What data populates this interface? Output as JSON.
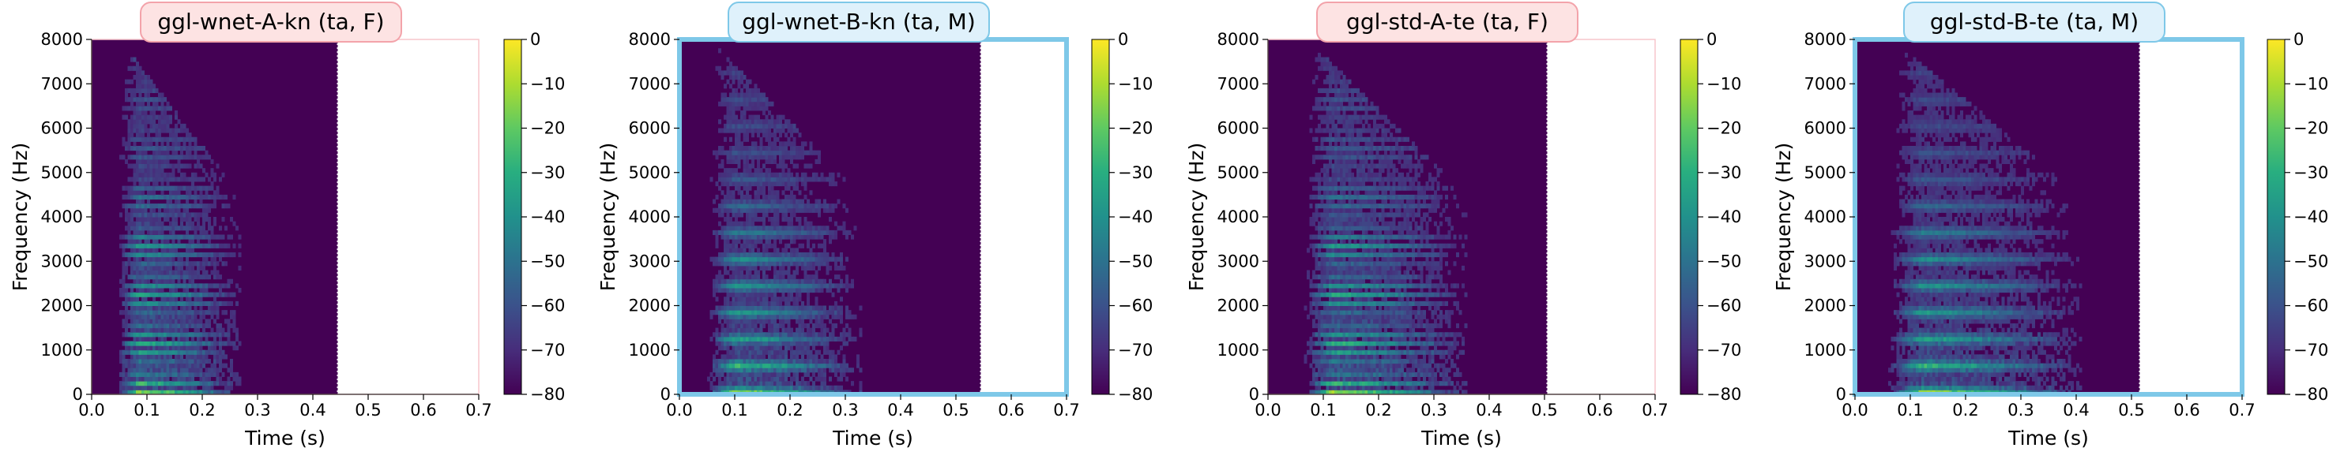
{
  "chart_data": [
    {
      "type": "heatmap",
      "title": "ggl-wnet-A-kn (ta, F)",
      "title_style": "female",
      "xlabel": "Time (s)",
      "ylabel": "Frequency (Hz)",
      "xlim": [
        0,
        0.7
      ],
      "ylim": [
        0,
        8000
      ],
      "x_ticks": [
        "0.0",
        "0.1",
        "0.2",
        "0.3",
        "0.4",
        "0.5",
        "0.6",
        "0.7"
      ],
      "y_ticks": [
        "0",
        "1000",
        "2000",
        "3000",
        "4000",
        "5000",
        "6000",
        "7000",
        "8000"
      ],
      "signal_start_s": 0.045,
      "signal_end_s": 0.27,
      "spectrogram_end_s": 0.445,
      "colorbar": {
        "label": "",
        "range": [
          -80,
          0
        ],
        "ticks": [
          "0",
          "−10",
          "−20",
          "−30",
          "−40",
          "−50",
          "−60",
          "−70",
          "−80"
        ],
        "colormap": "viridis"
      },
      "frame_color": "#f7c6cc"
    },
    {
      "type": "heatmap",
      "title": "ggl-wnet-B-kn (ta, M)",
      "title_style": "male",
      "xlabel": "Time (s)",
      "ylabel": "Frequency (Hz)",
      "xlim": [
        0,
        0.7
      ],
      "ylim": [
        0,
        8000
      ],
      "x_ticks": [
        "0.0",
        "0.1",
        "0.2",
        "0.3",
        "0.4",
        "0.5",
        "0.6",
        "0.7"
      ],
      "y_ticks": [
        "0",
        "1000",
        "2000",
        "3000",
        "4000",
        "5000",
        "6000",
        "7000",
        "8000"
      ],
      "signal_start_s": 0.05,
      "signal_end_s": 0.33,
      "spectrogram_end_s": 0.545,
      "colorbar": {
        "label": "",
        "range": [
          -80,
          0
        ],
        "ticks": [
          "0",
          "−10",
          "−20",
          "−30",
          "−40",
          "−50",
          "−60",
          "−70",
          "−80"
        ],
        "colormap": "viridis"
      },
      "frame_color": "#7ec8e8"
    },
    {
      "type": "heatmap",
      "title": "ggl-std-A-te (ta, F)",
      "title_style": "female",
      "xlabel": "Time (s)",
      "ylabel": "Frequency (Hz)",
      "xlim": [
        0,
        0.7
      ],
      "ylim": [
        0,
        8000
      ],
      "x_ticks": [
        "0.0",
        "0.1",
        "0.2",
        "0.3",
        "0.4",
        "0.5",
        "0.6",
        "0.7"
      ],
      "y_ticks": [
        "0",
        "1000",
        "2000",
        "3000",
        "4000",
        "5000",
        "6000",
        "7000",
        "8000"
      ],
      "signal_start_s": 0.065,
      "signal_end_s": 0.36,
      "spectrogram_end_s": 0.505,
      "colorbar": {
        "label": "",
        "range": [
          -80,
          0
        ],
        "ticks": [
          "0",
          "−10",
          "−20",
          "−30",
          "−40",
          "−50",
          "−60",
          "−70",
          "−80"
        ],
        "colormap": "viridis"
      },
      "frame_color": "#f7c6cc"
    },
    {
      "type": "heatmap",
      "title": "ggl-std-B-te (ta, M)",
      "title_style": "male",
      "xlabel": "Time (s)",
      "ylabel": "Frequency (Hz)",
      "xlim": [
        0,
        0.7
      ],
      "ylim": [
        0,
        8000
      ],
      "x_ticks": [
        "0.0",
        "0.1",
        "0.2",
        "0.3",
        "0.4",
        "0.5",
        "0.6",
        "0.7"
      ],
      "y_ticks": [
        "0",
        "1000",
        "2000",
        "3000",
        "4000",
        "5000",
        "6000",
        "7000",
        "8000"
      ],
      "signal_start_s": 0.06,
      "signal_end_s": 0.41,
      "spectrogram_end_s": 0.515,
      "colorbar": {
        "label": "",
        "range": [
          -80,
          0
        ],
        "ticks": [
          "0",
          "−10",
          "−20",
          "−30",
          "−40",
          "−50",
          "−60",
          "−70",
          "−80"
        ],
        "colormap": "viridis"
      },
      "frame_color": "#7ec8e8"
    }
  ],
  "colors": {
    "female_title_bg": "#fde3e3",
    "female_title_border": "#f3a3aa",
    "male_title_bg": "#dff1fb",
    "male_title_border": "#7ec8e8",
    "background_floor": "#440154"
  }
}
